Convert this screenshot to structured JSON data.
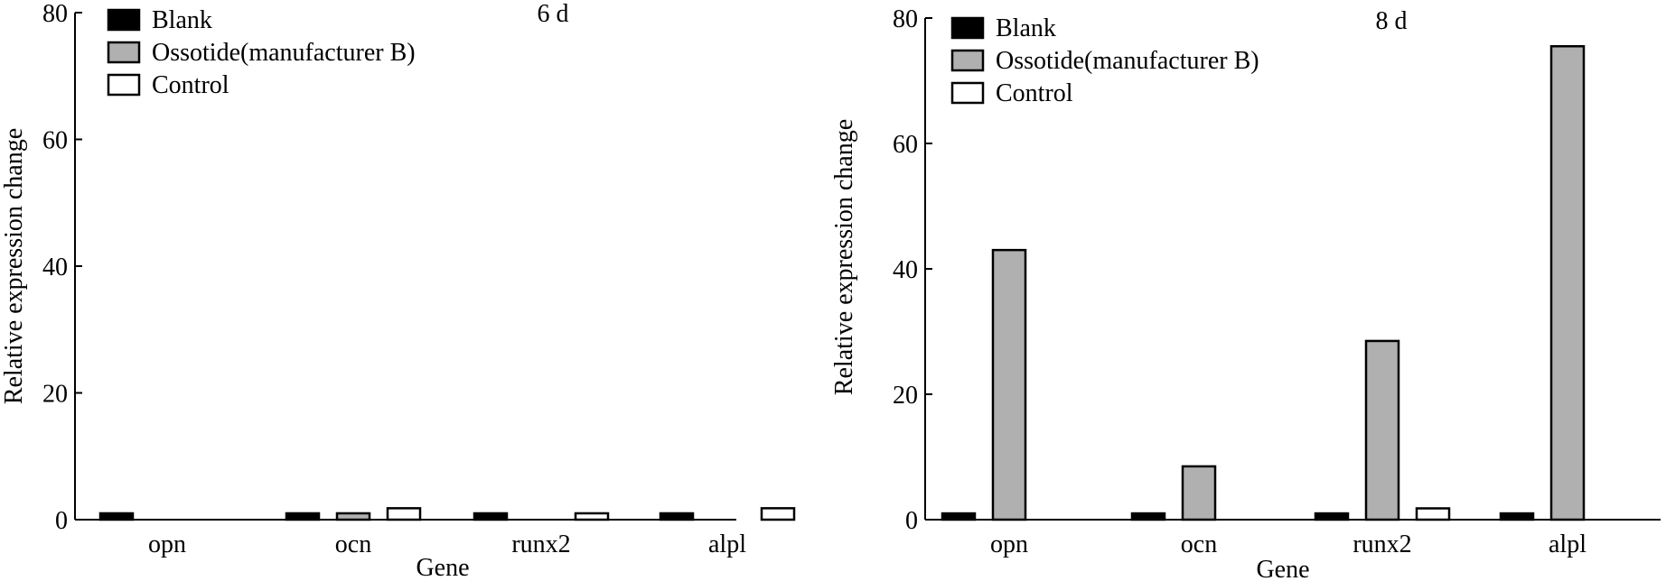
{
  "chart_data": [
    {
      "type": "bar",
      "annotation": "6 d",
      "xlabel": "Gene",
      "ylabel": "Relative expression change",
      "categories": [
        "opn",
        "ocn",
        "runx2",
        "alpl"
      ],
      "ylim": [
        0,
        80
      ],
      "yticks": [
        0,
        20,
        40,
        60,
        80
      ],
      "legend_position": "top-left",
      "series": [
        {
          "name": "Blank",
          "color": "#000000",
          "values": [
            1,
            1,
            1,
            1
          ]
        },
        {
          "name": "Ossotide(manufacturer B)",
          "color": "#b0b0b0",
          "values": [
            0,
            1,
            0,
            0
          ]
        },
        {
          "name": "Control",
          "color": "#ffffff",
          "values": [
            0,
            1.8,
            1,
            1.8
          ]
        }
      ]
    },
    {
      "type": "bar",
      "annotation": "8 d",
      "xlabel": "Gene",
      "ylabel": "Relative expression change",
      "categories": [
        "opn",
        "ocn",
        "runx2",
        "alpl"
      ],
      "ylim": [
        0,
        80
      ],
      "yticks": [
        0,
        20,
        40,
        60,
        80
      ],
      "legend_position": "top-left",
      "series": [
        {
          "name": "Blank",
          "color": "#000000",
          "values": [
            1,
            1,
            1,
            1
          ]
        },
        {
          "name": "Ossotide(manufacturer B)",
          "color": "#b0b0b0",
          "values": [
            43,
            8.5,
            28.5,
            75.5
          ]
        },
        {
          "name": "Control",
          "color": "#ffffff",
          "values": [
            0,
            0,
            1.8,
            0
          ]
        }
      ]
    }
  ]
}
